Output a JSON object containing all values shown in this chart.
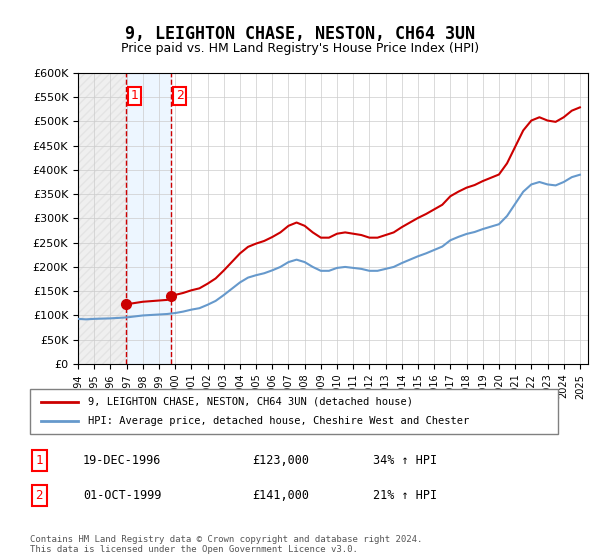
{
  "title": "9, LEIGHTON CHASE, NESTON, CH64 3UN",
  "subtitle": "Price paid vs. HM Land Registry's House Price Index (HPI)",
  "ylabel_ticks": [
    "£0",
    "£50K",
    "£100K",
    "£150K",
    "£200K",
    "£250K",
    "£300K",
    "£350K",
    "£400K",
    "£450K",
    "£500K",
    "£550K",
    "£600K"
  ],
  "ytick_vals": [
    0,
    50000,
    100000,
    150000,
    200000,
    250000,
    300000,
    350000,
    400000,
    450000,
    500000,
    550000,
    600000
  ],
  "sale1_date": 1996.96,
  "sale1_price": 123000,
  "sale2_date": 1999.75,
  "sale2_price": 141000,
  "sale1_label": "1",
  "sale2_label": "2",
  "legend_red": "9, LEIGHTON CHASE, NESTON, CH64 3UN (detached house)",
  "legend_blue": "HPI: Average price, detached house, Cheshire West and Chester",
  "table_row1": [
    "1",
    "19-DEC-1996",
    "£123,000",
    "34% ↑ HPI"
  ],
  "table_row2": [
    "2",
    "01-OCT-1999",
    "£141,000",
    "21% ↑ HPI"
  ],
  "footnote": "Contains HM Land Registry data © Crown copyright and database right 2024.\nThis data is licensed under the Open Government Licence v3.0.",
  "bg_color": "#ffffff",
  "hatch_color": "#cccccc",
  "grid_color": "#cccccc",
  "red_line_color": "#cc0000",
  "blue_line_color": "#6699cc",
  "shade_color": "#ddeeff",
  "vline_color": "#cc0000",
  "xmin": 1994,
  "xmax": 2025.5,
  "ymin": 0,
  "ymax": 600000
}
